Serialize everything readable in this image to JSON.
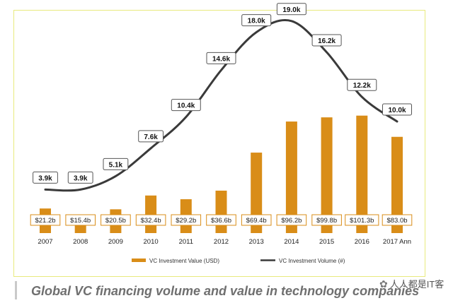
{
  "chart_data": {
    "type": "bar+line",
    "categories": [
      "2007",
      "2008",
      "2009",
      "2010",
      "2011",
      "2012",
      "2013",
      "2014",
      "2015",
      "2016",
      "2017 Ann"
    ],
    "series": [
      {
        "name": "VC Investment Value (USD)",
        "type": "bar",
        "color": "#d98d18",
        "values": [
          21.2,
          15.4,
          20.5,
          32.4,
          29.2,
          36.6,
          69.4,
          96.2,
          99.8,
          101.3,
          83.0
        ],
        "labels": [
          "$21.2b",
          "$15.4b",
          "$20.5b",
          "$32.4b",
          "$29.2b",
          "$36.6b",
          "$69.4b",
          "$96.2b",
          "$99.8b",
          "$101.3b",
          "$83.0b"
        ]
      },
      {
        "name": "VC Investment Volume (#)",
        "type": "line",
        "color": "#3a3a3a",
        "values": [
          3.9,
          3.9,
          5.1,
          7.6,
          10.4,
          14.6,
          18.0,
          19.0,
          16.2,
          12.2,
          10.0
        ],
        "labels": [
          "3.9k",
          "3.9k",
          "5.1k",
          "7.6k",
          "10.4k",
          "14.6k",
          "18.0k",
          "19.0k",
          "16.2k",
          "12.2k",
          "10.0k"
        ]
      }
    ],
    "bar_max": 120,
    "line_range": [
      0,
      22
    ]
  },
  "caption": "Global VC financing volume and value in technology companies",
  "watermark": "人人都是IT客"
}
